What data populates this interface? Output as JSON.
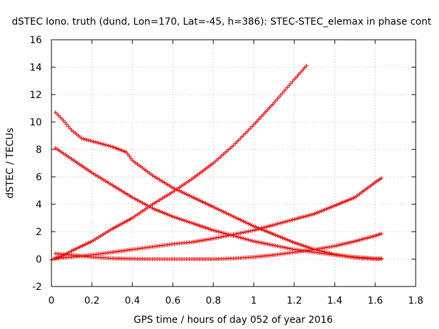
{
  "chart_data": {
    "type": "scatter",
    "title": "dSTEC Iono. truth (dund, Lon=170, Lat=-45, h=386): STEC-STEC_elemax in phase cont",
    "xlabel": "GPS time / hours of day 052 of year 2016",
    "ylabel": "dSTEC  / TECUs",
    "xlim": [
      0,
      1.8
    ],
    "ylim": [
      -2,
      16
    ],
    "x_ticks": [
      0,
      0.2,
      0.4,
      0.6,
      0.8,
      1,
      1.2,
      1.4,
      1.6,
      1.8
    ],
    "x_tick_labels": [
      "0",
      "0.2",
      "0.4",
      "0.6",
      "0.8",
      "1",
      "1.2",
      "1.4",
      "1.6",
      "1.8"
    ],
    "y_ticks": [
      -2,
      0,
      2,
      4,
      6,
      8,
      10,
      12,
      14,
      16
    ],
    "y_tick_labels": [
      "-2",
      "0",
      "2",
      "4",
      "6",
      "8",
      "10",
      "12",
      "14",
      "16"
    ],
    "grid": true,
    "marker": "+",
    "marker_color": "#e00000",
    "series": [
      {
        "x": [
          0.0,
          0.05,
          0.1,
          0.2,
          0.3,
          0.4,
          0.5,
          0.6,
          0.7,
          0.8,
          0.9,
          1.0,
          1.1,
          1.2,
          1.26
        ],
        "y": [
          -0.05,
          0.2,
          0.6,
          1.3,
          2.2,
          3.0,
          4.0,
          4.9,
          5.9,
          7.0,
          8.3,
          9.8,
          11.4,
          13.1,
          14.1
        ]
      },
      {
        "x": [
          0.02,
          0.06,
          0.1,
          0.15,
          0.2,
          0.3,
          0.37,
          0.4,
          0.5,
          0.6,
          0.7,
          0.8,
          0.9,
          1.0,
          1.1,
          1.2,
          1.3,
          1.4,
          1.5,
          1.6,
          1.63
        ],
        "y": [
          10.7,
          10.1,
          9.4,
          8.8,
          8.6,
          8.2,
          7.8,
          7.2,
          6.1,
          5.2,
          4.5,
          3.8,
          3.1,
          2.4,
          1.8,
          1.2,
          0.7,
          0.35,
          0.1,
          0.0,
          0.0
        ]
      },
      {
        "x": [
          0.02,
          0.1,
          0.2,
          0.3,
          0.4,
          0.5,
          0.6,
          0.7,
          0.8,
          0.9,
          1.0,
          1.1,
          1.2,
          1.3,
          1.4,
          1.5,
          1.6,
          1.63
        ],
        "y": [
          8.1,
          7.3,
          6.3,
          5.4,
          4.5,
          3.7,
          3.1,
          2.6,
          2.1,
          1.7,
          1.3,
          1.0,
          0.7,
          0.5,
          0.3,
          0.15,
          0.05,
          0.05
        ]
      },
      {
        "x": [
          0.02,
          0.1,
          0.2,
          0.3,
          0.4,
          0.5,
          0.6,
          0.7,
          0.8,
          0.9,
          1.0,
          1.1,
          1.2,
          1.3,
          1.4,
          1.5,
          1.6,
          1.63
        ],
        "y": [
          0.05,
          0.15,
          0.3,
          0.5,
          0.7,
          0.9,
          1.1,
          1.25,
          1.5,
          1.8,
          2.1,
          2.5,
          2.9,
          3.3,
          3.9,
          4.5,
          5.6,
          5.9
        ]
      },
      {
        "x": [
          0.02,
          0.1,
          0.2,
          0.3,
          0.4,
          0.5,
          0.6,
          0.7,
          0.8,
          0.9,
          1.0,
          1.1,
          1.2,
          1.3,
          1.4,
          1.5,
          1.6,
          1.63
        ],
        "y": [
          0.4,
          0.3,
          0.15,
          0.05,
          0.02,
          0.0,
          0.0,
          0.0,
          0.0,
          0.05,
          0.15,
          0.3,
          0.5,
          0.7,
          0.95,
          1.3,
          1.7,
          1.85
        ]
      }
    ]
  }
}
